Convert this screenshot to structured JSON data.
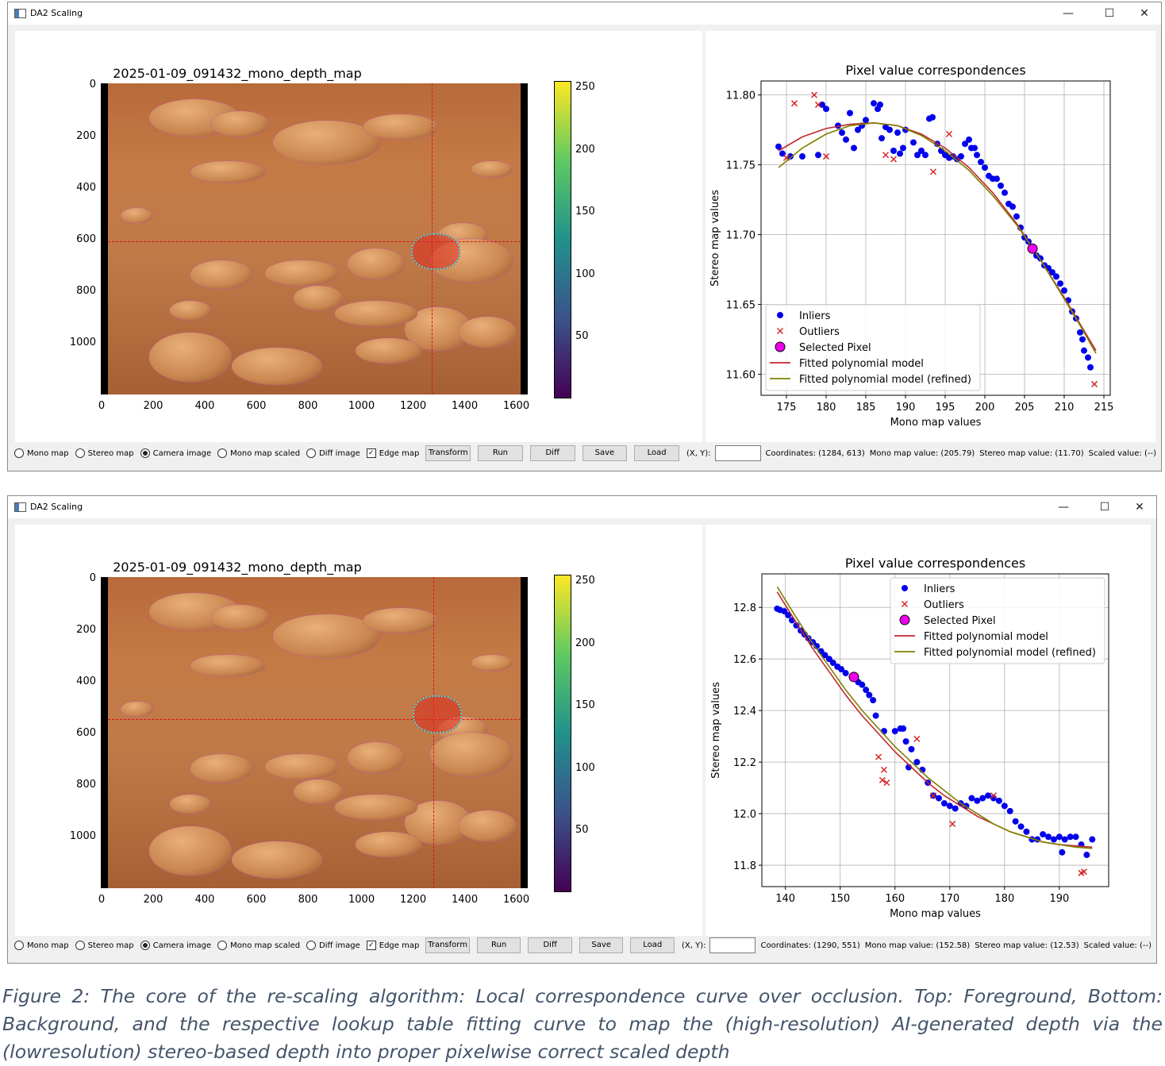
{
  "windows": [
    {
      "title": "DA2 Scaling",
      "controls": {
        "minimize": "—",
        "maximize": "☐",
        "close": "✕"
      },
      "image_title": "2025-01-09_091432_mono_depth_map",
      "image_yticks": [
        "0",
        "200",
        "400",
        "600",
        "800",
        "1000"
      ],
      "image_xticks": [
        "0",
        "200",
        "400",
        "600",
        "800",
        "1000",
        "1200",
        "1400",
        "1600"
      ],
      "colorbar_ticks": [
        "250",
        "200",
        "150",
        "100",
        "50"
      ],
      "crosshair": {
        "x": 1284,
        "y": 613
      },
      "radios": [
        {
          "label": "Mono map",
          "checked": false
        },
        {
          "label": "Stereo map",
          "checked": false
        },
        {
          "label": "Camera image",
          "checked": true
        },
        {
          "label": "Mono map scaled",
          "checked": false
        },
        {
          "label": "Diff image",
          "checked": false
        }
      ],
      "checkbox": {
        "label": "Edge map",
        "checked": true
      },
      "buttons": [
        "Transform",
        "Run",
        "Diff",
        "Save",
        "Load"
      ],
      "xy_label": "(X, Y):",
      "xy_value": "",
      "status": [
        "Coordinates: (1284, 613)",
        "Mono map value: (205.79)",
        "Stereo map value: (11.70)",
        "Scaled value: (--)"
      ]
    },
    {
      "title": "DA2 Scaling",
      "controls": {
        "minimize": "—",
        "maximize": "☐",
        "close": "✕"
      },
      "image_title": "2025-01-09_091432_mono_depth_map",
      "image_yticks": [
        "0",
        "200",
        "400",
        "600",
        "800",
        "1000"
      ],
      "image_xticks": [
        "0",
        "200",
        "400",
        "600",
        "800",
        "1000",
        "1200",
        "1400",
        "1600"
      ],
      "colorbar_ticks": [
        "250",
        "200",
        "150",
        "100",
        "50"
      ],
      "crosshair": {
        "x": 1290,
        "y": 551
      },
      "radios": [
        {
          "label": "Mono map",
          "checked": false
        },
        {
          "label": "Stereo map",
          "checked": false
        },
        {
          "label": "Camera image",
          "checked": true
        },
        {
          "label": "Mono map scaled",
          "checked": false
        },
        {
          "label": "Diff image",
          "checked": false
        }
      ],
      "checkbox": {
        "label": "Edge map",
        "checked": true
      },
      "buttons": [
        "Transform",
        "Run",
        "Diff",
        "Save",
        "Load"
      ],
      "xy_label": "(X, Y):",
      "xy_value": "",
      "status": [
        "Coordinates: (1290, 551)",
        "Mono map value: (152.58)",
        "Stereo map value: (12.53)",
        "Scaled value: (--)"
      ]
    }
  ],
  "chart_data": [
    {
      "type": "scatter",
      "title": "Pixel value correspondences",
      "xlabel": "Mono map values",
      "ylabel": "Stereo map values",
      "xlim": [
        171.8,
        215.8
      ],
      "ylim": [
        11.585,
        11.81
      ],
      "xticks": [
        175,
        180,
        185,
        190,
        195,
        200,
        205,
        210,
        215
      ],
      "yticks": [
        11.6,
        11.65,
        11.7,
        11.75,
        11.8
      ],
      "ytick_labels": [
        "11.60",
        "11.65",
        "11.70",
        "11.75",
        "11.80"
      ],
      "grid": true,
      "legend_position": "lower-left",
      "legend": [
        "Inliers",
        "Outliers",
        "Selected Pixel",
        "Fitted polynomial model",
        "Fitted polynomial model (refined)"
      ],
      "colors": {
        "inliers": "#0000ee",
        "outliers": "#d62728",
        "selected": "#ee00ee",
        "model": "#c0272d",
        "refined": "#808000"
      },
      "inliers": [
        [
          174,
          11.763
        ],
        [
          174.5,
          11.758
        ],
        [
          175.5,
          11.756
        ],
        [
          177,
          11.756
        ],
        [
          179,
          11.757
        ],
        [
          179.5,
          11.793
        ],
        [
          180,
          11.79
        ],
        [
          181.5,
          11.778
        ],
        [
          182,
          11.773
        ],
        [
          182.5,
          11.768
        ],
        [
          183,
          11.787
        ],
        [
          183.5,
          11.762
        ],
        [
          184,
          11.775
        ],
        [
          184.5,
          11.778
        ],
        [
          185,
          11.782
        ],
        [
          186,
          11.794
        ],
        [
          186.5,
          11.79
        ],
        [
          186.8,
          11.793
        ],
        [
          187,
          11.769
        ],
        [
          187.5,
          11.777
        ],
        [
          188,
          11.775
        ],
        [
          188.5,
          11.76
        ],
        [
          189,
          11.773
        ],
        [
          189.3,
          11.758
        ],
        [
          189.7,
          11.762
        ],
        [
          190,
          11.775
        ],
        [
          191,
          11.766
        ],
        [
          191.5,
          11.757
        ],
        [
          192,
          11.76
        ],
        [
          192.5,
          11.757
        ],
        [
          193,
          11.783
        ],
        [
          193.4,
          11.784
        ],
        [
          194,
          11.765
        ],
        [
          194.5,
          11.76
        ],
        [
          195,
          11.757
        ],
        [
          195.5,
          11.755
        ],
        [
          196,
          11.756
        ],
        [
          196.5,
          11.754
        ],
        [
          197,
          11.756
        ],
        [
          197.5,
          11.765
        ],
        [
          198,
          11.768
        ],
        [
          198.3,
          11.762
        ],
        [
          198.7,
          11.762
        ],
        [
          199,
          11.757
        ],
        [
          199.5,
          11.752
        ],
        [
          200,
          11.748
        ],
        [
          200.5,
          11.742
        ],
        [
          201,
          11.74
        ],
        [
          201.5,
          11.74
        ],
        [
          202,
          11.735
        ],
        [
          202.5,
          11.73
        ],
        [
          203,
          11.722
        ],
        [
          203.5,
          11.72
        ],
        [
          204,
          11.713
        ],
        [
          204.5,
          11.705
        ],
        [
          205,
          11.698
        ],
        [
          205.5,
          11.695
        ],
        [
          206.5,
          11.685
        ],
        [
          207,
          11.683
        ],
        [
          207.5,
          11.678
        ],
        [
          208,
          11.676
        ],
        [
          208.5,
          11.673
        ],
        [
          209,
          11.67
        ],
        [
          209.5,
          11.665
        ],
        [
          210,
          11.66
        ],
        [
          210.5,
          11.653
        ],
        [
          211,
          11.645
        ],
        [
          211.5,
          11.64
        ],
        [
          212,
          11.63
        ],
        [
          212.3,
          11.625
        ],
        [
          212.5,
          11.617
        ],
        [
          213,
          11.612
        ],
        [
          213.3,
          11.605
        ]
      ],
      "outliers": [
        [
          175,
          11.755
        ],
        [
          176,
          11.794
        ],
        [
          178.5,
          11.8
        ],
        [
          179,
          11.793
        ],
        [
          180,
          11.756
        ],
        [
          187.5,
          11.757
        ],
        [
          188.5,
          11.754
        ],
        [
          193.5,
          11.745
        ],
        [
          195.5,
          11.772
        ],
        [
          213.8,
          11.593
        ]
      ],
      "selected": [
        206,
        11.69
      ],
      "model": [
        [
          174,
          11.76
        ],
        [
          177,
          11.77
        ],
        [
          180,
          11.776
        ],
        [
          183,
          11.779
        ],
        [
          186,
          11.78
        ],
        [
          189,
          11.778
        ],
        [
          192,
          11.772
        ],
        [
          195,
          11.762
        ],
        [
          198,
          11.748
        ],
        [
          201,
          11.73
        ],
        [
          204,
          11.708
        ],
        [
          207,
          11.682
        ],
        [
          210,
          11.655
        ],
        [
          212,
          11.636
        ],
        [
          214,
          11.617
        ]
      ],
      "refined": [
        [
          174,
          11.748
        ],
        [
          177,
          11.762
        ],
        [
          180,
          11.772
        ],
        [
          183,
          11.778
        ],
        [
          186,
          11.78
        ],
        [
          189,
          11.778
        ],
        [
          192,
          11.771
        ],
        [
          195,
          11.76
        ],
        [
          198,
          11.746
        ],
        [
          201,
          11.728
        ],
        [
          204,
          11.707
        ],
        [
          207,
          11.682
        ],
        [
          210,
          11.654
        ],
        [
          212,
          11.635
        ],
        [
          214,
          11.615
        ]
      ]
    },
    {
      "type": "scatter",
      "title": "Pixel value correspondences",
      "xlabel": "Mono map values",
      "ylabel": "Stereo map values",
      "xlim": [
        135.7,
        199
      ],
      "ylim": [
        11.717,
        12.93
      ],
      "xticks": [
        140,
        150,
        160,
        170,
        180,
        190
      ],
      "yticks": [
        11.8,
        12.0,
        12.2,
        12.4,
        12.6,
        12.8
      ],
      "ytick_labels": [
        "11.8",
        "12.0",
        "12.2",
        "12.4",
        "12.6",
        "12.8"
      ],
      "grid": true,
      "legend_position": "upper-right",
      "legend": [
        "Inliers",
        "Outliers",
        "Selected Pixel",
        "Fitted polynomial model",
        "Fitted polynomial model (refined)"
      ],
      "colors": {
        "inliers": "#0000ee",
        "outliers": "#d62728",
        "selected": "#ee00ee",
        "model": "#c0272d",
        "refined": "#808000"
      },
      "inliers": [
        [
          138.5,
          12.795
        ],
        [
          139,
          12.79
        ],
        [
          139.8,
          12.785
        ],
        [
          140.5,
          12.77
        ],
        [
          141.2,
          12.75
        ],
        [
          142,
          12.73
        ],
        [
          142.8,
          12.71
        ],
        [
          143.5,
          12.695
        ],
        [
          144.2,
          12.68
        ],
        [
          145,
          12.665
        ],
        [
          145.7,
          12.65
        ],
        [
          146.5,
          12.63
        ],
        [
          147.2,
          12.615
        ],
        [
          148,
          12.6
        ],
        [
          148.7,
          12.585
        ],
        [
          149.5,
          12.57
        ],
        [
          150.2,
          12.56
        ],
        [
          151,
          12.545
        ],
        [
          153.3,
          12.51
        ],
        [
          154,
          12.5
        ],
        [
          154.7,
          12.48
        ],
        [
          155.3,
          12.46
        ],
        [
          156,
          12.44
        ],
        [
          156.5,
          12.38
        ],
        [
          158,
          12.32
        ],
        [
          160,
          12.32
        ],
        [
          161,
          12.33
        ],
        [
          161.5,
          12.33
        ],
        [
          162,
          12.28
        ],
        [
          162.5,
          12.18
        ],
        [
          163,
          12.25
        ],
        [
          164,
          12.2
        ],
        [
          165,
          12.17
        ],
        [
          166,
          12.12
        ],
        [
          167,
          12.07
        ],
        [
          168,
          12.06
        ],
        [
          169,
          12.04
        ],
        [
          170,
          12.03
        ],
        [
          171,
          12.02
        ],
        [
          172,
          12.04
        ],
        [
          173,
          12.03
        ],
        [
          174,
          12.06
        ],
        [
          175,
          12.05
        ],
        [
          176,
          12.06
        ],
        [
          177,
          12.07
        ],
        [
          178,
          12.06
        ],
        [
          179,
          12.05
        ],
        [
          180,
          12.03
        ],
        [
          181,
          12.01
        ],
        [
          182,
          11.97
        ],
        [
          183,
          11.95
        ],
        [
          184,
          11.93
        ],
        [
          185,
          11.9
        ],
        [
          186,
          11.9
        ],
        [
          187,
          11.92
        ],
        [
          188,
          11.91
        ],
        [
          189,
          11.9
        ],
        [
          190,
          11.91
        ],
        [
          190.5,
          11.85
        ],
        [
          191,
          11.9
        ],
        [
          192,
          11.91
        ],
        [
          193,
          11.91
        ],
        [
          194,
          11.88
        ],
        [
          195,
          11.84
        ],
        [
          196,
          11.9
        ]
      ],
      "outliers": [
        [
          157,
          12.22
        ],
        [
          158,
          12.17
        ],
        [
          157.7,
          12.13
        ],
        [
          158.5,
          12.12
        ],
        [
          164,
          12.29
        ],
        [
          167,
          12.07
        ],
        [
          170.5,
          11.96
        ],
        [
          178,
          12.07
        ],
        [
          194,
          11.77
        ],
        [
          194.5,
          11.775
        ]
      ],
      "selected": [
        152.5,
        12.53
      ],
      "model": [
        [
          138.5,
          12.86
        ],
        [
          142,
          12.74
        ],
        [
          145,
          12.64
        ],
        [
          148,
          12.55
        ],
        [
          151,
          12.46
        ],
        [
          154,
          12.38
        ],
        [
          157,
          12.31
        ],
        [
          160,
          12.24
        ],
        [
          163,
          12.18
        ],
        [
          166,
          12.12
        ],
        [
          169,
          12.07
        ],
        [
          172,
          12.03
        ],
        [
          175,
          11.99
        ],
        [
          178,
          11.96
        ],
        [
          181,
          11.93
        ],
        [
          184,
          11.91
        ],
        [
          187,
          11.89
        ],
        [
          190,
          11.88
        ],
        [
          193,
          11.875
        ],
        [
          196,
          11.87
        ]
      ],
      "refined": [
        [
          138.5,
          12.88
        ],
        [
          142,
          12.76
        ],
        [
          145,
          12.66
        ],
        [
          148,
          12.57
        ],
        [
          151,
          12.48
        ],
        [
          154,
          12.4
        ],
        [
          157,
          12.33
        ],
        [
          160,
          12.26
        ],
        [
          163,
          12.2
        ],
        [
          166,
          12.14
        ],
        [
          169,
          12.09
        ],
        [
          172,
          12.04
        ],
        [
          175,
          12.0
        ],
        [
          178,
          11.96
        ],
        [
          181,
          11.93
        ],
        [
          184,
          11.91
        ],
        [
          187,
          11.89
        ],
        [
          190,
          11.88
        ],
        [
          193,
          11.87
        ],
        [
          196,
          11.865
        ]
      ]
    }
  ],
  "caption": "Figure 2: The core of the re-scaling algorithm: Local correspondence curve over occlusion. Top: Foreground, Bottom: Background, and the respective lookup table fitting curve to map the (high-resolution) AI-generated depth via the (lowresolution) stereo-based depth into proper pixelwise correct scaled depth"
}
